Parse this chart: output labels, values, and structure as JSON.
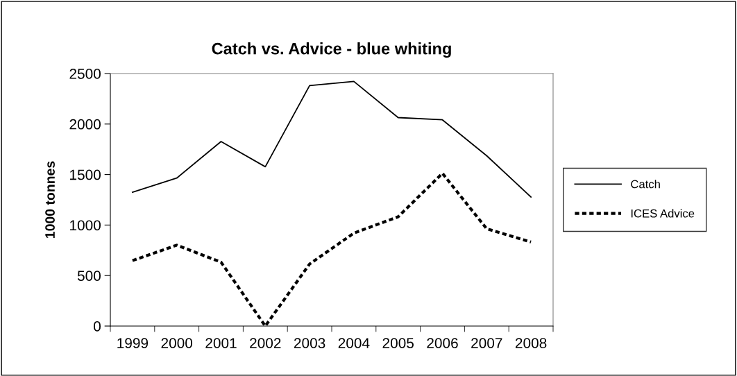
{
  "chart_data": {
    "type": "line",
    "title": "Catch vs. Advice - blue whiting",
    "ylabel": "1000 tonnes",
    "categories": [
      "1999",
      "2000",
      "2001",
      "2002",
      "2003",
      "2004",
      "2005",
      "2006",
      "2007",
      "2008"
    ],
    "series": [
      {
        "name": "Catch",
        "color": "#000000",
        "line_style": "solid",
        "values": [
          1325,
          1465,
          1827,
          1577,
          2381,
          2422,
          2064,
          2042,
          1686,
          1278
        ]
      },
      {
        "name": "ICES Advice",
        "color": "#000000",
        "line_style": "dotted",
        "values": [
          648,
          801,
          633,
          0,
          614,
          920,
          1082,
          1512,
          963,
          832
        ]
      }
    ],
    "ylim": [
      0,
      2500
    ],
    "yticks": [
      0,
      500,
      1000,
      1500,
      2000,
      2500
    ],
    "grid": false,
    "legend": "right",
    "marker": "none"
  }
}
